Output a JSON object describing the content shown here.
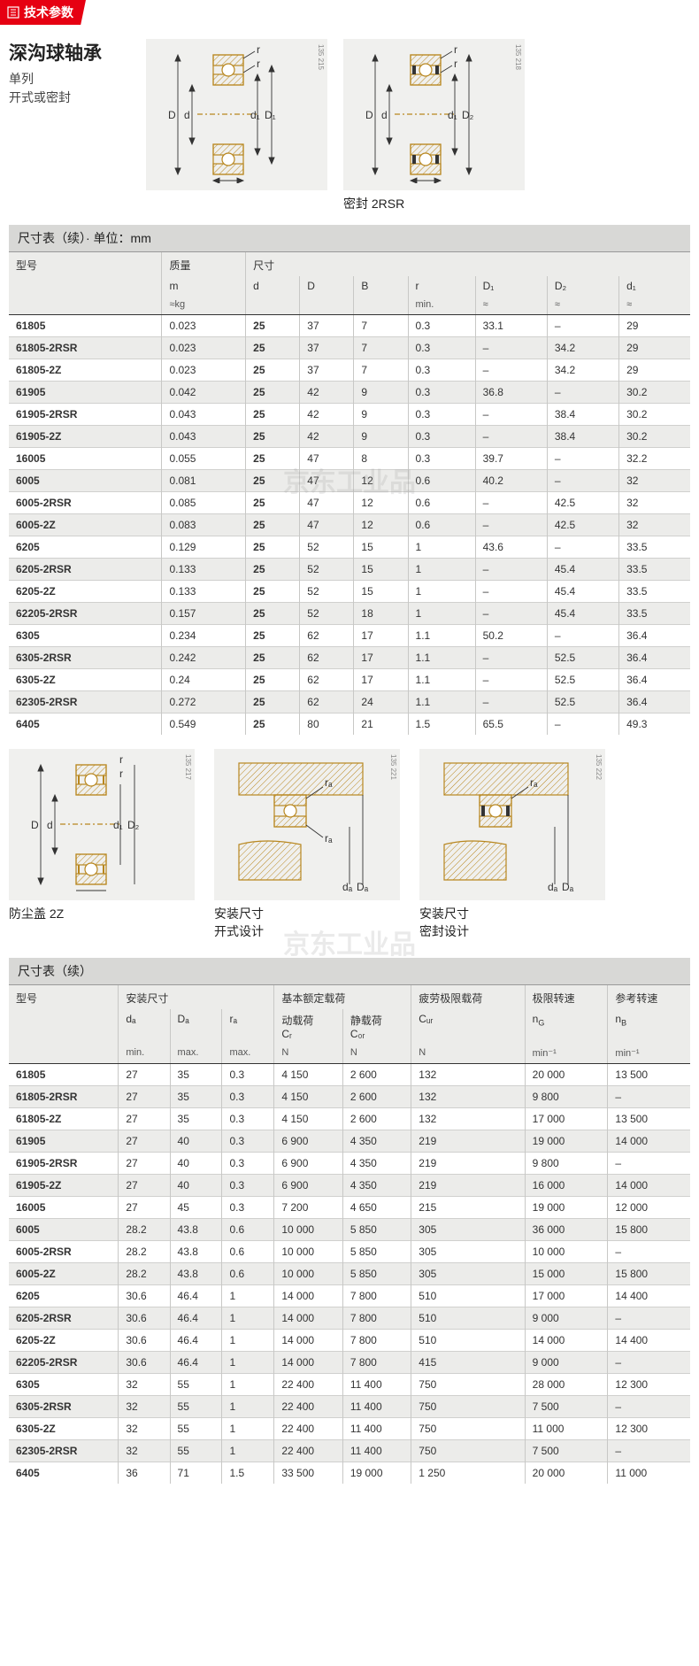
{
  "header": {
    "tag": "技术参数"
  },
  "title": {
    "main": "深沟球轴承",
    "sub1": "单列",
    "sub2": "开式或密封"
  },
  "diag_labels": {
    "sealed": "密封 2RSR",
    "dust": "防尘盖 2Z",
    "open_install": "安装尺寸\n开式设计",
    "sealed_install": "安装尺寸\n密封设计"
  },
  "side_nums": {
    "d1": "135 215",
    "d2": "135 218",
    "d3": "135 217",
    "d4": "135 221",
    "d5": "135 222"
  },
  "watermark": "京东工业品",
  "table1": {
    "title": "尺寸表（续）· 单位：mm",
    "headers": {
      "c0": "型号",
      "c1": "质量",
      "c2": "尺寸"
    },
    "sub": {
      "c1": "m",
      "c2": "d",
      "c3": "D",
      "c4": "B",
      "c5": "r",
      "c6": "D₁",
      "c7": "D₂",
      "c8": "d₁"
    },
    "unit": {
      "c1": "≈kg",
      "c5": "min.",
      "c6": "≈",
      "c7": "≈",
      "c8": "≈"
    },
    "rows": [
      [
        "61805",
        "0.023",
        "25",
        "37",
        "7",
        "0.3",
        "33.1",
        "–",
        "29"
      ],
      [
        "61805-2RSR",
        "0.023",
        "25",
        "37",
        "7",
        "0.3",
        "–",
        "34.2",
        "29"
      ],
      [
        "61805-2Z",
        "0.023",
        "25",
        "37",
        "7",
        "0.3",
        "–",
        "34.2",
        "29"
      ],
      [
        "61905",
        "0.042",
        "25",
        "42",
        "9",
        "0.3",
        "36.8",
        "–",
        "30.2"
      ],
      [
        "61905-2RSR",
        "0.043",
        "25",
        "42",
        "9",
        "0.3",
        "–",
        "38.4",
        "30.2"
      ],
      [
        "61905-2Z",
        "0.043",
        "25",
        "42",
        "9",
        "0.3",
        "–",
        "38.4",
        "30.2"
      ],
      [
        "16005",
        "0.055",
        "25",
        "47",
        "8",
        "0.3",
        "39.7",
        "–",
        "32.2"
      ],
      [
        "6005",
        "0.081",
        "25",
        "47",
        "12",
        "0.6",
        "40.2",
        "–",
        "32"
      ],
      [
        "6005-2RSR",
        "0.085",
        "25",
        "47",
        "12",
        "0.6",
        "–",
        "42.5",
        "32"
      ],
      [
        "6005-2Z",
        "0.083",
        "25",
        "47",
        "12",
        "0.6",
        "–",
        "42.5",
        "32"
      ],
      [
        "6205",
        "0.129",
        "25",
        "52",
        "15",
        "1",
        "43.6",
        "–",
        "33.5"
      ],
      [
        "6205-2RSR",
        "0.133",
        "25",
        "52",
        "15",
        "1",
        "–",
        "45.4",
        "33.5"
      ],
      [
        "6205-2Z",
        "0.133",
        "25",
        "52",
        "15",
        "1",
        "–",
        "45.4",
        "33.5"
      ],
      [
        "62205-2RSR",
        "0.157",
        "25",
        "52",
        "18",
        "1",
        "–",
        "45.4",
        "33.5"
      ],
      [
        "6305",
        "0.234",
        "25",
        "62",
        "17",
        "1.1",
        "50.2",
        "–",
        "36.4"
      ],
      [
        "6305-2RSR",
        "0.242",
        "25",
        "62",
        "17",
        "1.1",
        "–",
        "52.5",
        "36.4"
      ],
      [
        "6305-2Z",
        "0.24",
        "25",
        "62",
        "17",
        "1.1",
        "–",
        "52.5",
        "36.4"
      ],
      [
        "62305-2RSR",
        "0.272",
        "25",
        "62",
        "24",
        "1.1",
        "–",
        "52.5",
        "36.4"
      ],
      [
        "6405",
        "0.549",
        "25",
        "80",
        "21",
        "1.5",
        "65.5",
        "–",
        "49.3"
      ]
    ]
  },
  "table2": {
    "title": "尺寸表（续）",
    "headers": {
      "c0": "型号",
      "c1": "安装尺寸",
      "c2": "基本额定载荷",
      "c3": "疲劳极限载荷",
      "c4": "极限转速",
      "c5": "参考转速"
    },
    "sub": {
      "c1": "dₐ",
      "c2": "Dₐ",
      "c3": "rₐ",
      "c4": "动载荷\nCᵣ",
      "c5": "静载荷\nC₀ᵣ",
      "c6": "Cᵤᵣ",
      "c7": "n_G",
      "c8": "n_B"
    },
    "unit": {
      "c1": "min.",
      "c2": "max.",
      "c3": "max.",
      "c4": "N",
      "c5": "N",
      "c6": "N",
      "c7": "min⁻¹",
      "c8": "min⁻¹"
    },
    "rows": [
      [
        "61805",
        "27",
        "35",
        "0.3",
        "4 150",
        "2 600",
        "132",
        "20 000",
        "13 500"
      ],
      [
        "61805-2RSR",
        "27",
        "35",
        "0.3",
        "4 150",
        "2 600",
        "132",
        "9 800",
        "–"
      ],
      [
        "61805-2Z",
        "27",
        "35",
        "0.3",
        "4 150",
        "2 600",
        "132",
        "17 000",
        "13 500"
      ],
      [
        "61905",
        "27",
        "40",
        "0.3",
        "6 900",
        "4 350",
        "219",
        "19 000",
        "14 000"
      ],
      [
        "61905-2RSR",
        "27",
        "40",
        "0.3",
        "6 900",
        "4 350",
        "219",
        "9 800",
        "–"
      ],
      [
        "61905-2Z",
        "27",
        "40",
        "0.3",
        "6 900",
        "4 350",
        "219",
        "16 000",
        "14 000"
      ],
      [
        "16005",
        "27",
        "45",
        "0.3",
        "7 200",
        "4 650",
        "215",
        "19 000",
        "12 000"
      ],
      [
        "6005",
        "28.2",
        "43.8",
        "0.6",
        "10 000",
        "5 850",
        "305",
        "36 000",
        "15 800"
      ],
      [
        "6005-2RSR",
        "28.2",
        "43.8",
        "0.6",
        "10 000",
        "5 850",
        "305",
        "10 000",
        "–"
      ],
      [
        "6005-2Z",
        "28.2",
        "43.8",
        "0.6",
        "10 000",
        "5 850",
        "305",
        "15 000",
        "15 800"
      ],
      [
        "6205",
        "30.6",
        "46.4",
        "1",
        "14 000",
        "7 800",
        "510",
        "17 000",
        "14 400"
      ],
      [
        "6205-2RSR",
        "30.6",
        "46.4",
        "1",
        "14 000",
        "7 800",
        "510",
        "9 000",
        "–"
      ],
      [
        "6205-2Z",
        "30.6",
        "46.4",
        "1",
        "14 000",
        "7 800",
        "510",
        "14 000",
        "14 400"
      ],
      [
        "62205-2RSR",
        "30.6",
        "46.4",
        "1",
        "14 000",
        "7 800",
        "415",
        "9 000",
        "–"
      ],
      [
        "6305",
        "32",
        "55",
        "1",
        "22 400",
        "11 400",
        "750",
        "28 000",
        "12 300"
      ],
      [
        "6305-2RSR",
        "32",
        "55",
        "1",
        "22 400",
        "11 400",
        "750",
        "7 500",
        "–"
      ],
      [
        "6305-2Z",
        "32",
        "55",
        "1",
        "22 400",
        "11 400",
        "750",
        "11 000",
        "12 300"
      ],
      [
        "62305-2RSR",
        "32",
        "55",
        "1",
        "22 400",
        "11 400",
        "750",
        "7 500",
        "–"
      ],
      [
        "6405",
        "36",
        "71",
        "1.5",
        "33 500",
        "19 000",
        "1 250",
        "20 000",
        "11 000"
      ]
    ]
  }
}
